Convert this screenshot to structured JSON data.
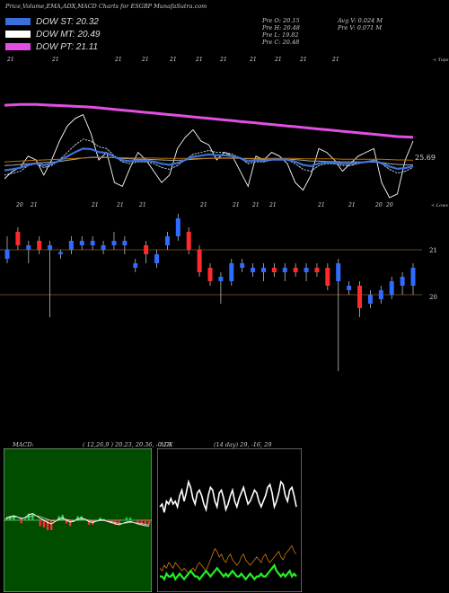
{
  "header": {
    "title": "Price,Volume,EMA,ADX,MACD Charts for ESGBP MunafaSutra.com",
    "open": "Pre  O: 20.15",
    "high": "Pre  H: 20.48",
    "low": "Pre  L: 19.82",
    "close": "Pre  C: 20.48",
    "avg_vol": "Avg V: 0.024  M",
    "pre_vol": "Pre  V: 0.071 M"
  },
  "legend": [
    {
      "label": "DOW ST: 20.32",
      "color": "#3a6fdc"
    },
    {
      "label": "DOW MT: 20.49",
      "color": "#ffffff"
    },
    {
      "label": "DOW PT: 21.11",
      "color": "#e24fe2"
    }
  ],
  "chart_data": [
    {
      "type": "line",
      "name": "price-ema-panel",
      "x_top_labels": [
        "21",
        "21",
        "21",
        "21",
        "21",
        "21",
        "21",
        "21",
        "21",
        "21",
        "21",
        "21"
      ],
      "x_bottom_labels": [
        "20",
        "21",
        "21",
        "21",
        "21",
        "21",
        "21",
        "21",
        "21",
        "21",
        "21",
        "20",
        "20",
        "21"
      ],
      "right_labels": [
        "< Tops",
        "< Lows"
      ],
      "last_value_label": "25.69",
      "series": [
        {
          "values": [
            15,
            17,
            18,
            21,
            20,
            16,
            20,
            25,
            29,
            31,
            32,
            27,
            20,
            22,
            14,
            13,
            18,
            22,
            20,
            17,
            14,
            16,
            23,
            26,
            28,
            25,
            24,
            20,
            22,
            21,
            17,
            13,
            21,
            20,
            22,
            21,
            19,
            14,
            12,
            16,
            23,
            22,
            20,
            17,
            19,
            21,
            22,
            23,
            14,
            10,
            11,
            20,
            25
          ]
        },
        {
          "values": [
            16,
            16.5,
            17,
            18.5,
            19,
            18,
            18.5,
            20,
            22,
            24,
            25.5,
            25,
            23.5,
            23,
            21,
            19.5,
            19,
            19.5,
            19.5,
            19,
            18,
            17.5,
            18.5,
            20,
            21.5,
            22,
            22.5,
            22,
            22,
            21.5,
            20.5,
            19,
            19.5,
            19.5,
            20,
            20,
            20,
            19,
            17.5,
            17,
            18.5,
            19,
            19,
            18.5,
            18.5,
            19,
            19.5,
            20,
            19,
            17.5,
            16.5,
            17,
            18
          ]
        },
        {
          "values": [
            18.5,
            18.6,
            18.8,
            19,
            19.2,
            19.3,
            19.4,
            19.6,
            19.9,
            20.2,
            20.5,
            20.7,
            20.7,
            20.7,
            20.6,
            20.4,
            20.3,
            20.2,
            20.2,
            20.1,
            20,
            19.9,
            19.9,
            20,
            20.2,
            20.3,
            20.4,
            20.5,
            20.5,
            20.5,
            20.4,
            20.3,
            20.3,
            20.2,
            20.2,
            20.2,
            20.2,
            20.1,
            19.9,
            19.7,
            19.7,
            19.6,
            19.6,
            19.5,
            19.5,
            19.5,
            19.4,
            19.4,
            19.3,
            19,
            18.8,
            18.7,
            18.7
          ]
        },
        {
          "values": [
            19.5,
            19.6,
            19.7,
            19.8,
            19.9,
            20,
            20.1,
            20.2,
            20.3,
            20.4,
            20.5,
            20.6,
            20.6,
            20.6,
            20.6,
            20.6,
            20.5,
            20.5,
            20.5,
            20.5,
            20.4,
            20.4,
            20.4,
            20.4,
            20.4,
            20.4,
            20.4,
            20.4,
            20.4,
            20.4,
            20.4,
            20.4,
            20.4,
            20.4,
            20.4,
            20.4,
            20.4,
            20.4,
            20.3,
            20.3,
            20.3,
            20.3,
            20.3,
            20.2,
            20.2,
            20.2,
            20.2,
            20.2,
            20.2,
            20.1,
            20,
            20,
            19.9
          ]
        },
        {
          "values": [
            34.5,
            34.6,
            34.7,
            34.7,
            34.7,
            34.6,
            34.5,
            34.4,
            34.3,
            34.2,
            34.1,
            34,
            33.8,
            33.6,
            33.4,
            33.2,
            33,
            32.8,
            32.6,
            32.4,
            32.2,
            32,
            31.8,
            31.6,
            31.4,
            31.2,
            31,
            30.8,
            30.6,
            30.4,
            30.2,
            30,
            29.8,
            29.6,
            29.4,
            29.2,
            29,
            28.8,
            28.6,
            28.4,
            28.2,
            28,
            27.8,
            27.6,
            27.4,
            27.2,
            27,
            26.8,
            26.6,
            26.4,
            26.2,
            26.1,
            26
          ]
        }
      ]
    },
    {
      "type": "candlestick",
      "name": "price-panel",
      "y_labels": [
        "21",
        "20"
      ],
      "candles": [
        {
          "o": 20.8,
          "c": 21.0,
          "h": 21.3,
          "l": 20.7
        },
        {
          "o": 21.4,
          "c": 21.1,
          "h": 21.5,
          "l": 21.0
        },
        {
          "o": 21.0,
          "c": 21.1,
          "h": 21.2,
          "l": 20.7
        },
        {
          "o": 21.2,
          "c": 21.0,
          "h": 21.3,
          "l": 20.9
        },
        {
          "o": 21.0,
          "c": 21.1,
          "h": 21.2,
          "l": 19.5
        },
        {
          "o": 20.9,
          "c": 20.95,
          "h": 21.0,
          "l": 20.8
        },
        {
          "o": 21.0,
          "c": 21.2,
          "h": 21.3,
          "l": 20.9
        },
        {
          "o": 21.1,
          "c": 21.2,
          "h": 21.3,
          "l": 21.0
        },
        {
          "o": 21.1,
          "c": 21.2,
          "h": 21.3,
          "l": 21.0
        },
        {
          "o": 21.0,
          "c": 21.1,
          "h": 21.2,
          "l": 20.9
        },
        {
          "o": 21.1,
          "c": 21.2,
          "h": 21.4,
          "l": 21.0
        },
        {
          "o": 21.1,
          "c": 21.2,
          "h": 21.3,
          "l": 20.9
        },
        {
          "o": 20.6,
          "c": 20.7,
          "h": 20.8,
          "l": 20.5
        },
        {
          "o": 21.1,
          "c": 20.9,
          "h": 21.2,
          "l": 20.7
        },
        {
          "o": 20.7,
          "c": 20.9,
          "h": 21.0,
          "l": 20.6
        },
        {
          "o": 21.1,
          "c": 21.3,
          "h": 21.4,
          "l": 21.0
        },
        {
          "o": 21.3,
          "c": 21.7,
          "h": 21.8,
          "l": 21.2
        },
        {
          "o": 21.4,
          "c": 21.0,
          "h": 21.5,
          "l": 20.9
        },
        {
          "o": 21.0,
          "c": 20.5,
          "h": 21.1,
          "l": 20.4
        },
        {
          "o": 20.6,
          "c": 20.3,
          "h": 20.7,
          "l": 20.2
        },
        {
          "o": 20.3,
          "c": 20.4,
          "h": 20.5,
          "l": 19.8
        },
        {
          "o": 20.3,
          "c": 20.7,
          "h": 20.8,
          "l": 20.2
        },
        {
          "o": 20.6,
          "c": 20.7,
          "h": 20.8,
          "l": 20.5
        },
        {
          "o": 20.5,
          "c": 20.6,
          "h": 20.7,
          "l": 20.4
        },
        {
          "o": 20.5,
          "c": 20.6,
          "h": 20.7,
          "l": 20.3
        },
        {
          "o": 20.6,
          "c": 20.5,
          "h": 20.7,
          "l": 20.4
        },
        {
          "o": 20.5,
          "c": 20.6,
          "h": 20.7,
          "l": 20.3
        },
        {
          "o": 20.6,
          "c": 20.5,
          "h": 20.7,
          "l": 20.4
        },
        {
          "o": 20.5,
          "c": 20.6,
          "h": 20.7,
          "l": 20.3
        },
        {
          "o": 20.6,
          "c": 20.5,
          "h": 20.7,
          "l": 20.4
        },
        {
          "o": 20.6,
          "c": 20.2,
          "h": 20.7,
          "l": 20.1
        },
        {
          "o": 20.3,
          "c": 20.7,
          "h": 20.8,
          "l": 18.3
        },
        {
          "o": 20.1,
          "c": 20.2,
          "h": 20.3,
          "l": 20.0
        },
        {
          "o": 20.2,
          "c": 19.7,
          "h": 20.3,
          "l": 19.5
        },
        {
          "o": 19.8,
          "c": 20.0,
          "h": 20.1,
          "l": 19.7
        },
        {
          "o": 19.9,
          "c": 20.1,
          "h": 20.2,
          "l": 19.8
        },
        {
          "o": 20.0,
          "c": 20.3,
          "h": 20.4,
          "l": 19.9
        },
        {
          "o": 20.2,
          "c": 20.4,
          "h": 20.5,
          "l": 20.0
        },
        {
          "o": 20.2,
          "c": 20.6,
          "h": 20.7,
          "l": 20.0
        }
      ]
    },
    {
      "type": "line",
      "name": "macd-panel",
      "title": "MACD:",
      "params": "( 12,26,9 ) 20.23, 20.36, -0.13",
      "series": [
        {
          "values": [
            0.05,
            0.08,
            0.1,
            0.07,
            0.03,
            0.06,
            0.12,
            0.15,
            0.1,
            0.04,
            0.0,
            -0.05,
            -0.08,
            -0.03,
            0.03,
            0.06,
            0.0,
            -0.04,
            -0.02,
            0.03,
            0.05,
            0.02,
            -0.03,
            -0.05,
            -0.02,
            0.01,
            0.0,
            -0.03,
            -0.05,
            -0.08,
            -0.1,
            -0.07,
            -0.04,
            -0.03,
            -0.05,
            -0.08,
            -0.1,
            -0.12,
            -0.13
          ]
        },
        {
          "values": [
            0.03,
            0.05,
            0.07,
            0.07,
            0.05,
            0.05,
            0.07,
            0.1,
            0.1,
            0.08,
            0.05,
            0.02,
            -0.01,
            -0.02,
            0.0,
            0.02,
            0.02,
            0.0,
            -0.01,
            0.0,
            0.02,
            0.02,
            0.0,
            -0.02,
            -0.02,
            -0.01,
            -0.01,
            -0.02,
            -0.03,
            -0.05,
            -0.07,
            -0.07,
            -0.06,
            -0.05,
            -0.05,
            -0.06,
            -0.07,
            -0.09,
            -0.1
          ]
        }
      ]
    },
    {
      "type": "line",
      "name": "adx-panel",
      "title": "ADX",
      "params": "(14 day) 29, -16, 29",
      "series": [
        {
          "values": [
            29,
            30,
            27,
            31,
            30,
            32,
            30,
            31,
            29,
            33,
            35,
            31,
            34,
            38,
            36,
            32,
            30,
            34,
            35,
            33,
            30,
            28,
            33,
            36,
            35,
            31,
            29,
            34,
            35,
            32,
            28,
            30,
            33,
            35,
            31,
            29,
            32,
            34,
            36,
            33,
            30,
            31,
            33,
            35,
            34,
            31,
            29,
            31,
            33,
            36,
            37,
            34,
            29,
            31,
            34,
            38,
            37,
            33,
            31,
            35,
            36,
            33,
            29
          ]
        },
        {
          "values": [
            4,
            4,
            3,
            5,
            4,
            4,
            5,
            3,
            4,
            5,
            4,
            3,
            4,
            5,
            6,
            5,
            4,
            4,
            3,
            4,
            5,
            6,
            5,
            4,
            5,
            6,
            7,
            6,
            5,
            4,
            5,
            4,
            5,
            6,
            5,
            4,
            4,
            5,
            4,
            3,
            4,
            5,
            4,
            3,
            4,
            4,
            5,
            4,
            4,
            5,
            6,
            7,
            8,
            6,
            5,
            4,
            5,
            4,
            5,
            6,
            4,
            5,
            4
          ]
        },
        {
          "values": [
            7,
            6,
            8,
            7,
            9,
            8,
            7,
            9,
            8,
            7,
            6,
            7,
            6,
            5,
            6,
            7,
            6,
            8,
            9,
            8,
            7,
            6,
            8,
            10,
            12,
            14,
            13,
            11,
            12,
            10,
            9,
            11,
            12,
            10,
            9,
            8,
            9,
            11,
            12,
            10,
            9,
            8,
            9,
            10,
            11,
            10,
            9,
            11,
            12,
            10,
            9,
            10,
            11,
            12,
            13,
            11,
            10,
            12,
            13,
            14,
            15,
            13,
            12
          ]
        }
      ]
    }
  ]
}
